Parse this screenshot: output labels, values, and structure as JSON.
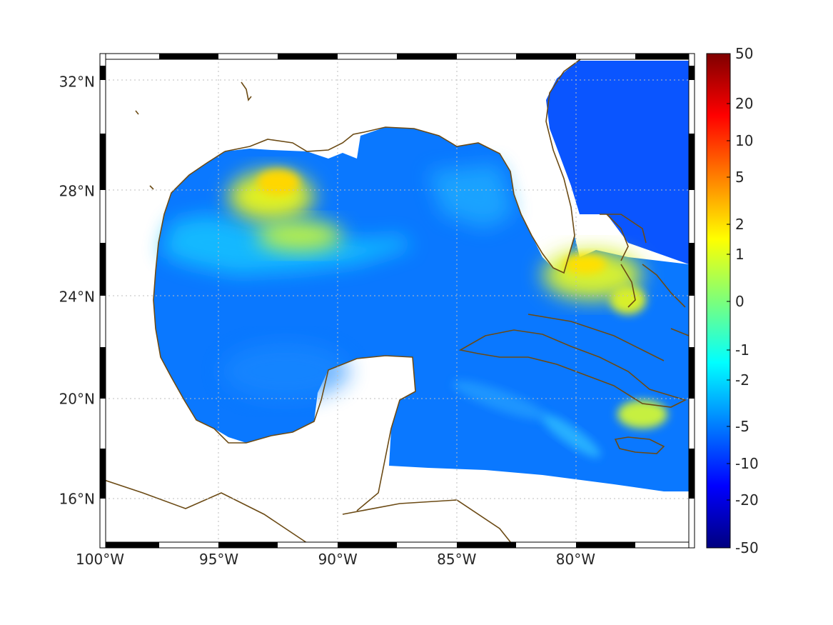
{
  "map": {
    "extent": {
      "lon_min": -100,
      "lon_max": -75,
      "lat_min": 14,
      "lat_max": 33
    },
    "lat_ticks": [
      {
        "value": 32,
        "label": "32°N"
      },
      {
        "value": 28,
        "label": "28°N"
      },
      {
        "value": 24,
        "label": "24°N"
      },
      {
        "value": 20,
        "label": "20°N"
      },
      {
        "value": 16,
        "label": "16°N"
      }
    ],
    "lon_ticks": [
      {
        "value": -100,
        "label": "100°W"
      },
      {
        "value": -95,
        "label": "95°W"
      },
      {
        "value": -90,
        "label": "90°W"
      },
      {
        "value": -85,
        "label": "85°W"
      },
      {
        "value": -80,
        "label": "80°W"
      }
    ],
    "grid": true,
    "frame_style": "alternating black/white border",
    "coastline_color": "#6b4a14",
    "field_description_colors": {
      "ocean_low": "#0a64ff",
      "high_anomaly": "#f2e600"
    }
  },
  "colorbar": {
    "colormap": "jet",
    "labels": [
      "50",
      "20",
      "10",
      "5",
      "2",
      "1",
      "0",
      "-1",
      "-2",
      "-5",
      "-10",
      "-20",
      "-50"
    ],
    "values": [
      50,
      20,
      10,
      5,
      2,
      1,
      0,
      -1,
      -2,
      -5,
      -10,
      -20,
      -50
    ]
  }
}
